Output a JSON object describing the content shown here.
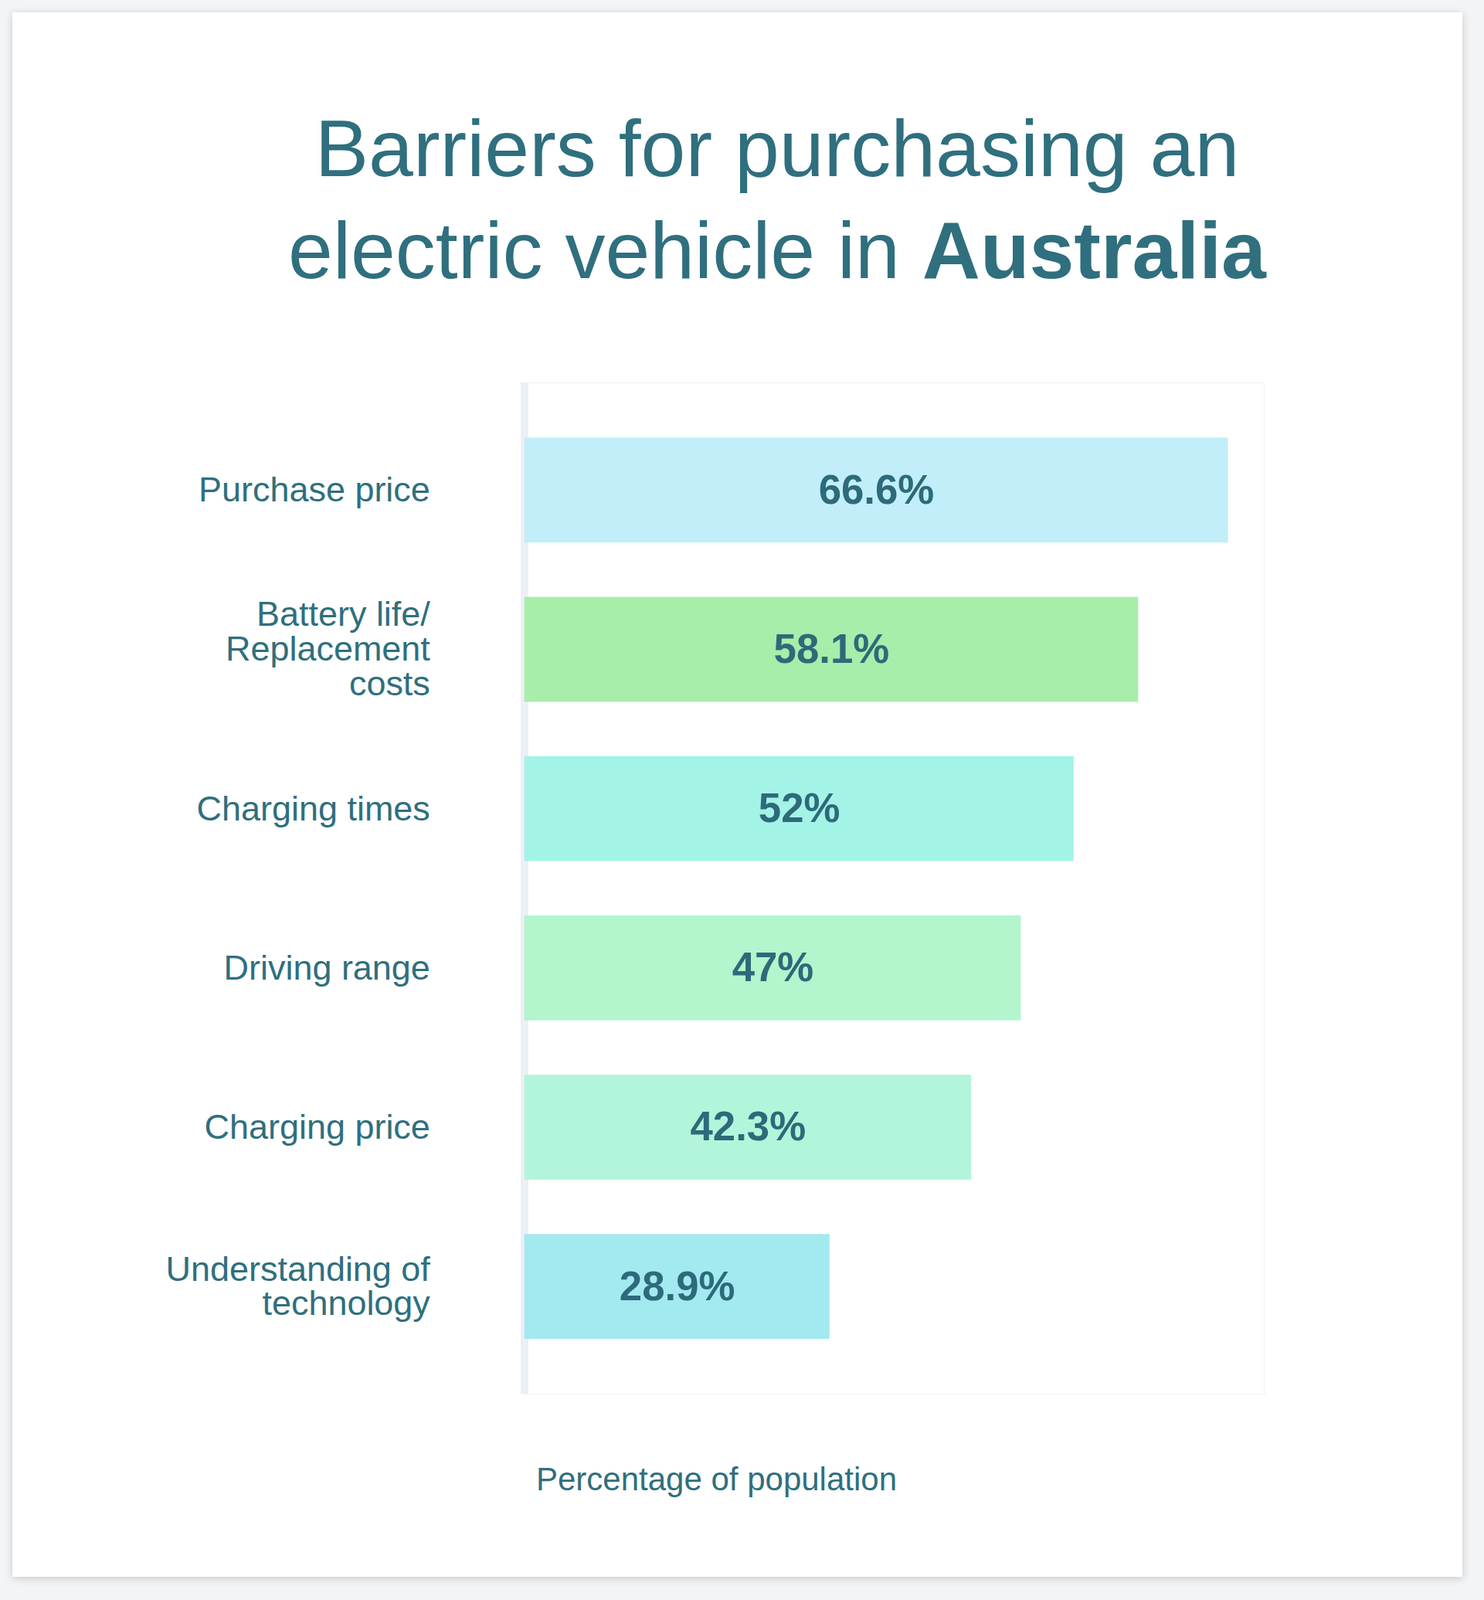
{
  "chart_data": {
    "type": "bar",
    "title": "Barriers for purchasing an electric vehicle in Australia",
    "orientation": "horizontal",
    "categories": [
      "Purchase price",
      "Battery life/ Replacement costs",
      "Charging times",
      "Driving range",
      "Charging price",
      "Understanding of technology"
    ],
    "values": [
      66.6,
      58.1,
      52,
      47,
      42.3,
      28.9
    ],
    "value_labels": [
      "66.6%",
      "58.1%",
      "52%",
      "47%",
      "42.3%",
      "28.9%"
    ],
    "colors": [
      "#c1eef8",
      "#a6eeaa",
      "#a3f3e7",
      "#b3f5cc",
      "#b3f5da",
      "#a3e9f0"
    ],
    "xlabel": "Percentage of population",
    "xlim": [
      0,
      70
    ],
    "xticks": [],
    "data_labels": true,
    "tick_labels": "y",
    "grid": false
  }
}
